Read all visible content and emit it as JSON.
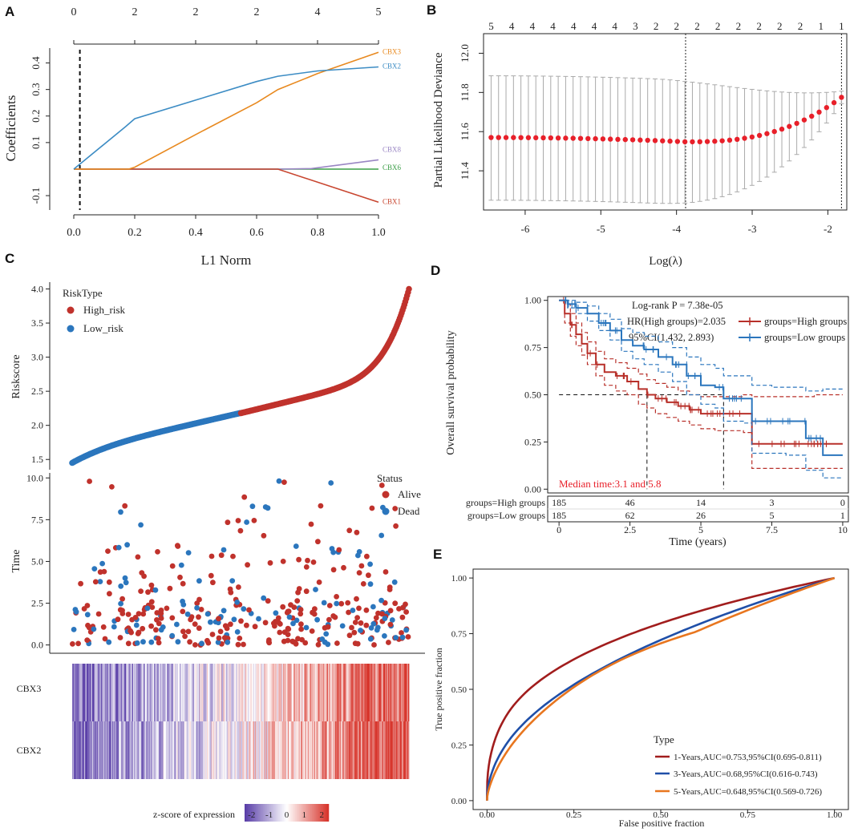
{
  "panels": {
    "A": "A",
    "B": "B",
    "C": "C",
    "D": "D",
    "E": "E"
  },
  "chart_data": [
    {
      "id": "A",
      "type": "line",
      "title": "",
      "xlabel": "L1 Norm",
      "ylabel": "Coefficients",
      "xlim": [
        0,
        1.0
      ],
      "ylim": [
        -0.13,
        0.45
      ],
      "xticks": [
        0,
        0.2,
        0.4,
        0.6,
        0.8,
        1.0
      ],
      "xtick_labels": [
        "0.0",
        "0.2",
        "0.4",
        "0.6",
        "0.8",
        "1.0"
      ],
      "yticks": [
        -0.1,
        0.1,
        0.2,
        0.3,
        0.4
      ],
      "ytick_labels": [
        "-0.1",
        "0.1",
        "0.2",
        "0.3",
        "0.4"
      ],
      "top_ticks": [
        0,
        0.2,
        0.4,
        0.6,
        0.8,
        1.0
      ],
      "top_tick_labels": [
        "0",
        "2",
        "2",
        "2",
        "4",
        "5"
      ],
      "vline": 0.02,
      "series": [
        {
          "name": "CBX3",
          "color": "#e8891f",
          "x": [
            0,
            0.18,
            0.2,
            0.4,
            0.6,
            0.67,
            0.8,
            1.0
          ],
          "y": [
            0,
            0,
            0.007,
            0.13,
            0.25,
            0.3,
            0.36,
            0.44
          ]
        },
        {
          "name": "CBX2",
          "color": "#3c8cc4",
          "x": [
            0,
            0.17,
            0.2,
            0.4,
            0.6,
            0.67,
            0.8,
            1.0
          ],
          "y": [
            0,
            0.16,
            0.19,
            0.26,
            0.33,
            0.35,
            0.37,
            0.385
          ]
        },
        {
          "name": "CBX8",
          "color": "#9a86c4",
          "x": [
            0,
            0.67,
            0.78,
            1.0
          ],
          "y": [
            0,
            0,
            0.002,
            0.035
          ]
        },
        {
          "name": "CBX6",
          "color": "#3a9d46",
          "x": [
            0,
            1.0
          ],
          "y": [
            0,
            0
          ]
        },
        {
          "name": "CBX1",
          "color": "#c8452f",
          "x": [
            0,
            0.67,
            1.0
          ],
          "y": [
            0,
            0,
            -0.125
          ]
        }
      ]
    },
    {
      "id": "B",
      "type": "scatter",
      "title": "",
      "xlabel": "Log(λ)",
      "ylabel": "Partial Likelihood Deviance",
      "xlim": [
        -6.55,
        -1.75
      ],
      "ylim": [
        11.2,
        12.1
      ],
      "xticks": [
        -6,
        -5,
        -4,
        -3,
        -2
      ],
      "yticks": [
        11.4,
        11.6,
        11.8,
        12.0
      ],
      "top_tick_labels": [
        "5",
        "4",
        "4",
        "4",
        "4",
        "4",
        "4",
        "3",
        "2",
        "2",
        "2",
        "2",
        "2",
        "2",
        "2",
        "2",
        "1",
        "1"
      ],
      "vlines": [
        -3.88,
        -1.82
      ],
      "point_color": "#e8202a",
      "errorbar_color": "#aaaaaa",
      "x_from": -6.45,
      "x_to": -1.82,
      "n_points": 48,
      "y_mean_flat": 11.57,
      "y_mean_min": 11.548,
      "y_mean_end": 11.775,
      "err_upper_flat": 11.885,
      "err_lower_flat": 11.25
    },
    {
      "id": "C",
      "type": "scatter",
      "subplots": [
        {
          "name": "riskscore",
          "ylabel": "Riskscore",
          "ylim": [
            1.35,
            4.1
          ],
          "yticks": [
            1.5,
            2.0,
            2.5,
            3.0,
            3.5,
            4.0
          ],
          "ytick_labels": [
            "1.5",
            "2.0",
            "2.5",
            "3.0",
            "3.5",
            "4.0"
          ],
          "legend_title": "RiskType",
          "legend": [
            {
              "label": "High_risk",
              "color": "#c0322c"
            },
            {
              "label": "Low_risk",
              "color": "#2b76bd"
            }
          ],
          "n_low": 185,
          "n_high": 185,
          "score_min": 1.45,
          "score_split": 2.18,
          "score_max": 4.0
        },
        {
          "name": "time",
          "ylabel": "Time",
          "ylim": [
            -0.4,
            10.3
          ],
          "yticks": [
            0.0,
            2.5,
            5.0,
            7.5,
            10.0
          ],
          "ytick_labels": [
            "0.0",
            "2.5",
            "5.0",
            "7.5",
            "10.0"
          ],
          "legend_title": "Status",
          "legend": [
            {
              "label": "Alive",
              "color": "#c0322c"
            },
            {
              "label": "Dead",
              "color": "#2b76bd"
            }
          ],
          "n_points": 370
        },
        {
          "name": "heatmap",
          "type": "heatmap",
          "rows": [
            "CBX3",
            "CBX2"
          ],
          "n_columns": 370,
          "colorbar_label": "z-score of expression",
          "colorbar_ticks": [
            "-2",
            "-1",
            "0",
            "1",
            "2"
          ],
          "colorbar_values": [
            -2,
            -1,
            0,
            1,
            2
          ],
          "colors": {
            "low": "#5a3fa8",
            "mid": "#ffffff",
            "high": "#d7342b"
          }
        }
      ]
    },
    {
      "id": "D",
      "type": "line",
      "title": "",
      "xlabel": "Time (years)",
      "ylabel": "Overall survival probability",
      "xlim": [
        -0.4,
        10.2
      ],
      "ylim": [
        -0.02,
        1.02
      ],
      "xticks": [
        0,
        2.5,
        5,
        7.5,
        10
      ],
      "xtick_labels": [
        "0",
        "2.5",
        "5",
        "7.5",
        "10"
      ],
      "yticks": [
        0.0,
        0.25,
        0.5,
        0.75,
        1.0
      ],
      "ytick_labels": [
        "0.00",
        "0.25",
        "0.50",
        "0.75",
        "1.00"
      ],
      "annotations": [
        "Log-rank P = 7.38e-05",
        "HR(High groups)=2.035",
        "95%CI(1.432, 2.893)"
      ],
      "median_label": "Median time:3.1 and 5.8",
      "median_color": "#e8202a",
      "medians": [
        3.1,
        5.8
      ],
      "series": [
        {
          "name": "groups=High groups",
          "color": "#b8302a",
          "x": [
            0,
            0.2,
            0.4,
            0.6,
            0.8,
            1.0,
            1.3,
            1.6,
            2.0,
            2.4,
            2.8,
            3.1,
            3.4,
            3.8,
            4.2,
            4.6,
            5.0,
            5.5,
            6.0,
            6.5,
            6.8,
            7.5,
            8.5,
            9.0,
            10.0
          ],
          "y": [
            1.0,
            0.93,
            0.87,
            0.82,
            0.77,
            0.72,
            0.66,
            0.62,
            0.6,
            0.57,
            0.53,
            0.5,
            0.48,
            0.46,
            0.44,
            0.42,
            0.4,
            0.4,
            0.4,
            0.4,
            0.24,
            0.24,
            0.24,
            0.24,
            0.24
          ],
          "ci_lower": [
            1.0,
            0.88,
            0.81,
            0.76,
            0.71,
            0.66,
            0.6,
            0.55,
            0.52,
            0.5,
            0.45,
            0.43,
            0.4,
            0.38,
            0.36,
            0.34,
            0.32,
            0.31,
            0.31,
            0.3,
            0.11,
            0.11,
            0.11,
            0.11,
            0.11
          ],
          "ci_upper": [
            1.0,
            0.98,
            0.93,
            0.88,
            0.83,
            0.78,
            0.73,
            0.69,
            0.67,
            0.64,
            0.61,
            0.58,
            0.56,
            0.54,
            0.52,
            0.5,
            0.49,
            0.49,
            0.49,
            0.5,
            0.49,
            0.49,
            0.49,
            0.5,
            0.5
          ]
        },
        {
          "name": "groups=Low groups",
          "color": "#2b76bd",
          "x": [
            0,
            0.3,
            0.6,
            1.0,
            1.4,
            1.8,
            2.2,
            2.6,
            3.0,
            3.5,
            4.0,
            4.5,
            5.0,
            5.5,
            5.8,
            6.5,
            6.8,
            7.5,
            8.0,
            8.7,
            9.3,
            10.0
          ],
          "y": [
            1.0,
            0.98,
            0.96,
            0.93,
            0.88,
            0.84,
            0.79,
            0.76,
            0.74,
            0.7,
            0.66,
            0.6,
            0.55,
            0.54,
            0.48,
            0.48,
            0.36,
            0.36,
            0.36,
            0.27,
            0.18,
            0.18
          ],
          "ci_lower": [
            1.0,
            0.96,
            0.93,
            0.89,
            0.84,
            0.79,
            0.73,
            0.69,
            0.66,
            0.62,
            0.57,
            0.5,
            0.45,
            0.43,
            0.36,
            0.35,
            0.19,
            0.19,
            0.18,
            0.1,
            0.06,
            0.06
          ],
          "ci_upper": [
            1.0,
            1.0,
            0.99,
            0.97,
            0.93,
            0.9,
            0.85,
            0.83,
            0.81,
            0.78,
            0.75,
            0.7,
            0.66,
            0.64,
            0.6,
            0.6,
            0.55,
            0.54,
            0.54,
            0.52,
            0.53,
            0.53
          ]
        }
      ],
      "risk_table": {
        "rows": [
          "groups=High groups",
          "groups=Low groups"
        ],
        "times": [
          0,
          2.5,
          5,
          7.5,
          10
        ],
        "values": [
          [
            185,
            46,
            14,
            3,
            0
          ],
          [
            185,
            62,
            26,
            5,
            1
          ]
        ]
      }
    },
    {
      "id": "E",
      "type": "line",
      "title": "",
      "xlabel": "False positive fraction",
      "ylabel": "True positive fraction",
      "xlim": [
        -0.04,
        1.04
      ],
      "ylim": [
        -0.04,
        1.04
      ],
      "xticks": [
        0.0,
        0.25,
        0.5,
        0.75,
        1.0
      ],
      "xtick_labels": [
        "0.00",
        "0.25",
        "0.50",
        "0.75",
        "1.00"
      ],
      "yticks": [
        0.0,
        0.25,
        0.5,
        0.75,
        1.0
      ],
      "ytick_labels": [
        "0.00",
        "0.25",
        "0.50",
        "0.75",
        "1.00"
      ],
      "legend_title": "Type",
      "series": [
        {
          "name": "1-Years,AUC=0.753,95%CI(0.695-0.811)",
          "color": "#a11d1d",
          "auc": 0.753
        },
        {
          "name": "3-Years,AUC=0.68,95%CI(0.616-0.743)",
          "color": "#1f4fa8",
          "auc": 0.68
        },
        {
          "name": "5-Years,AUC=0.648,95%CI(0.569-0.726)",
          "color": "#e8761f",
          "auc": 0.648
        }
      ]
    }
  ]
}
